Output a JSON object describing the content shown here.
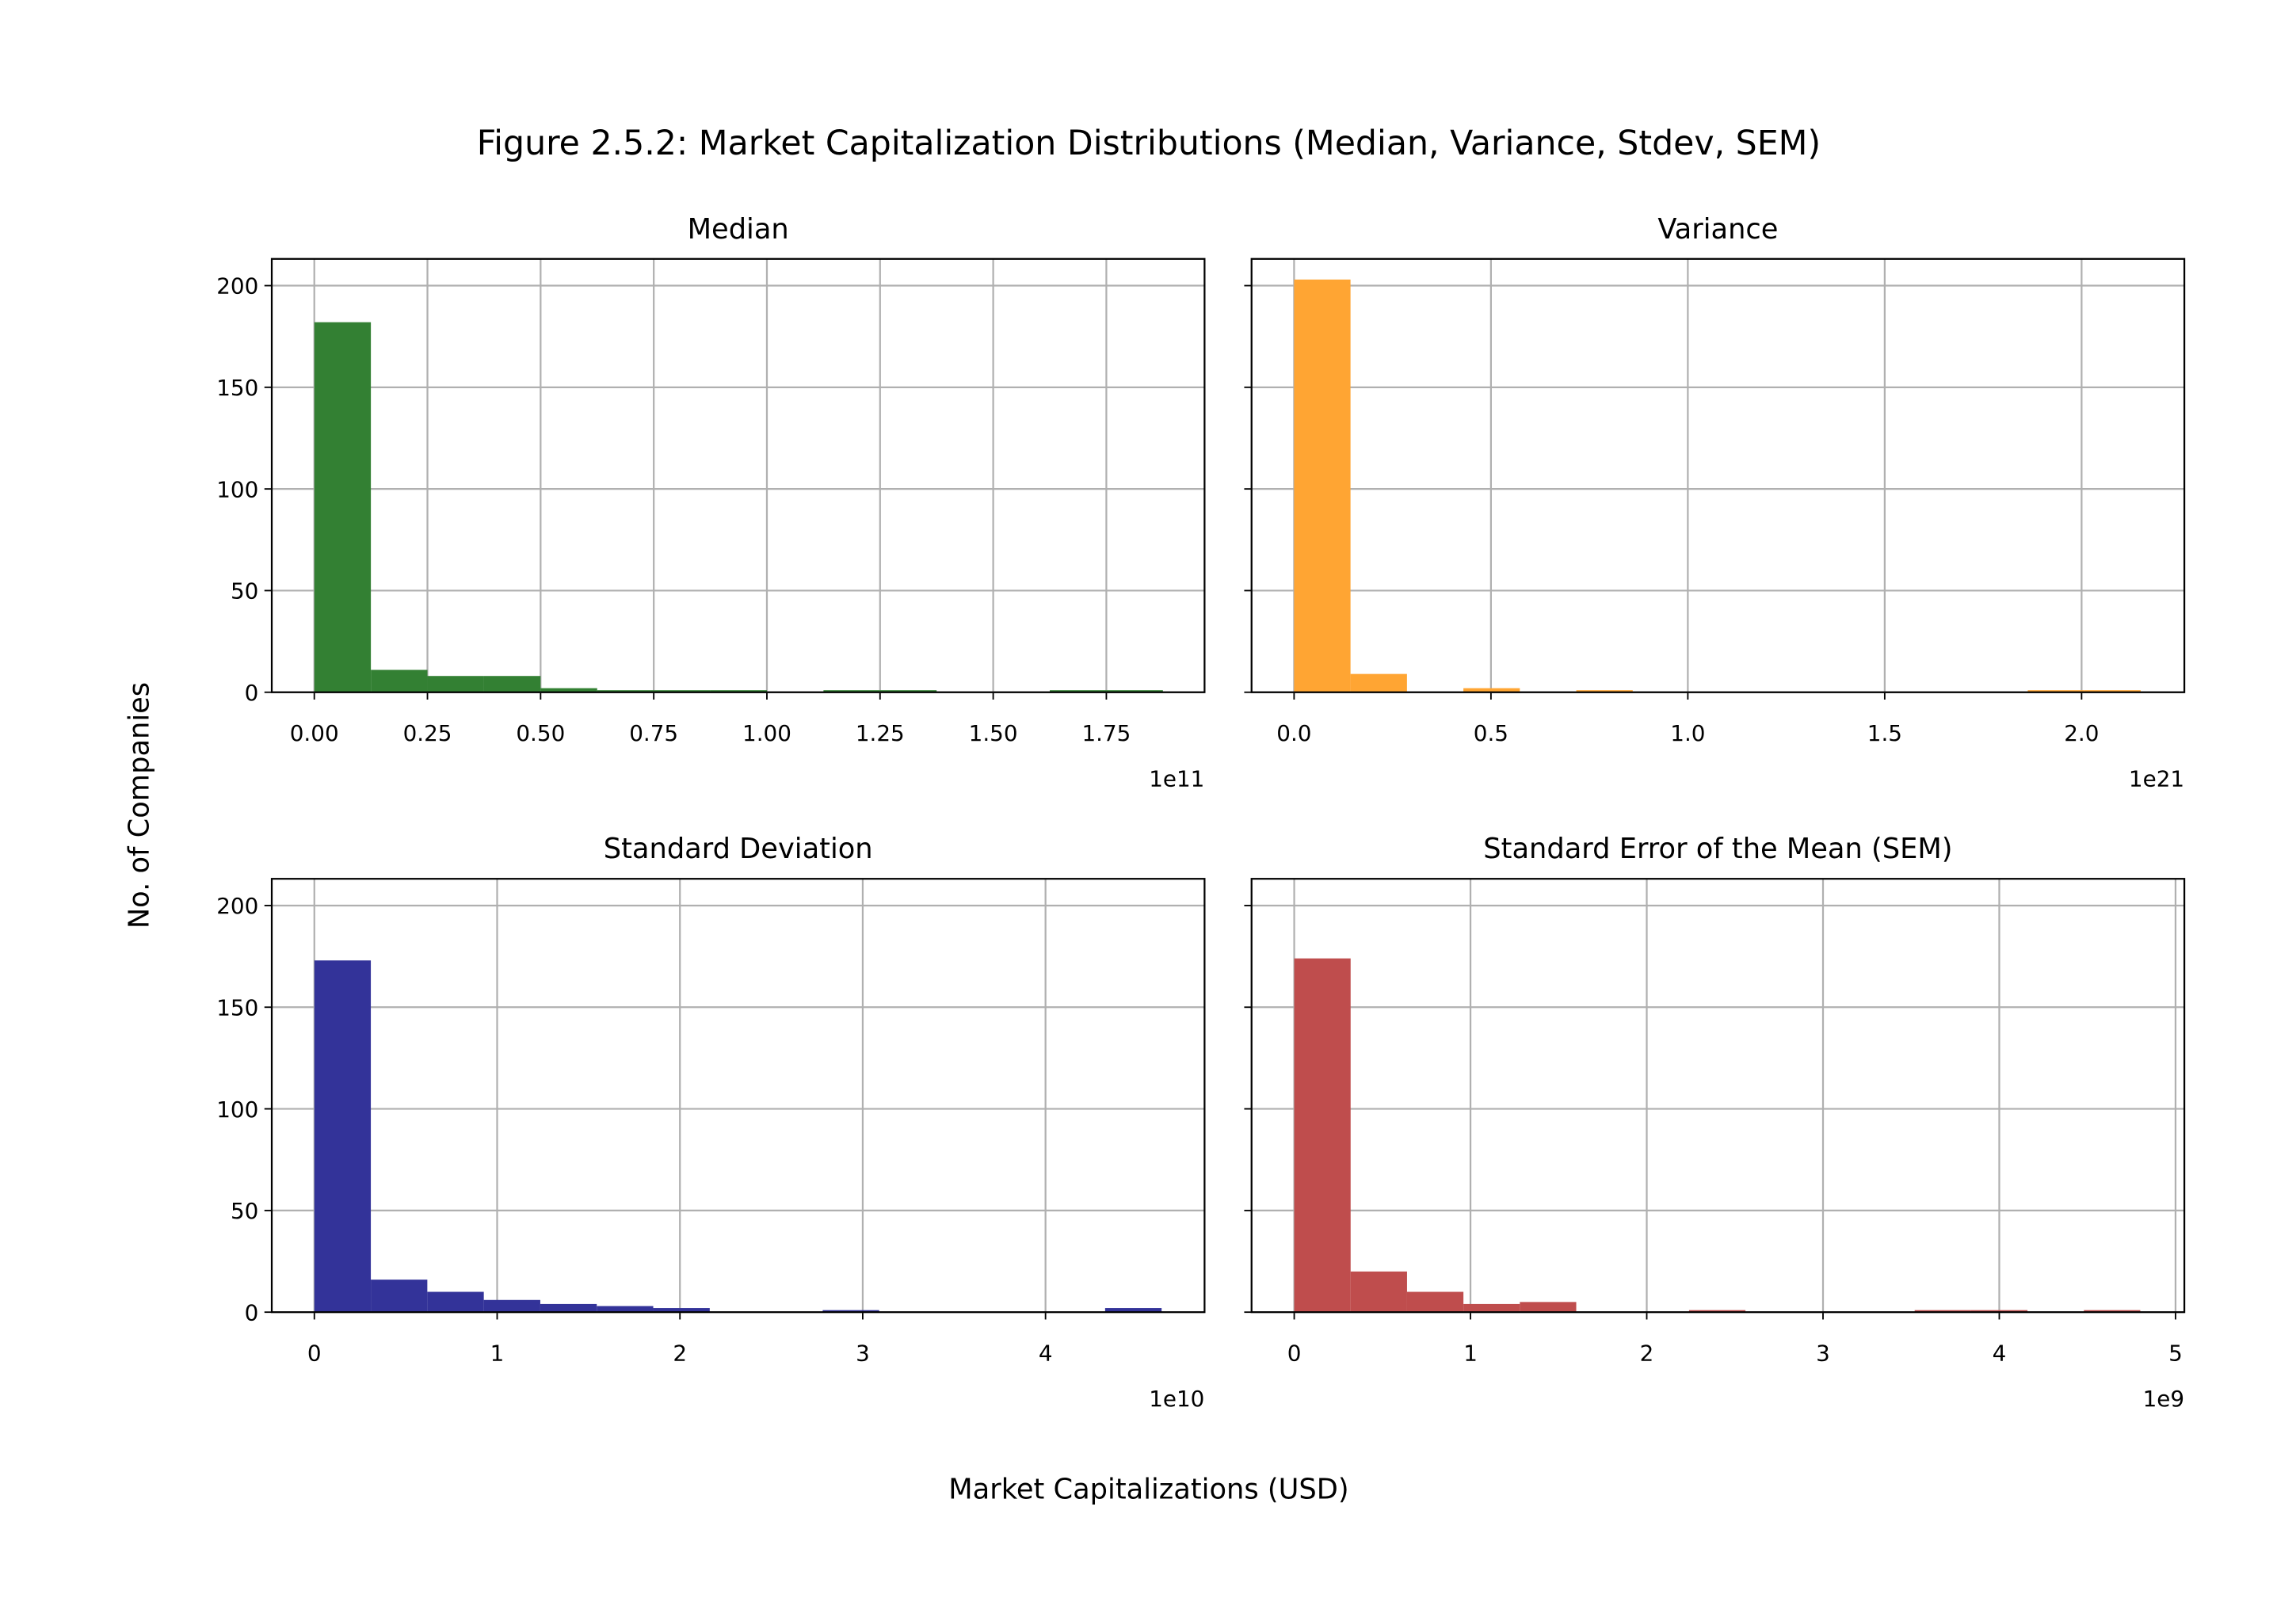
{
  "title": "Figure 2.5.2: Market Capitalization Distributions (Median, Variance, Stdev, SEM)",
  "xlabel": "Market Capitalizations (USD)",
  "ylabel": "No. of Companies",
  "chart_data": [
    {
      "type": "histogram",
      "title": "Median",
      "color": "#338033",
      "grid": true,
      "show_ytick_labels": true,
      "x_offset_label": "1e11",
      "bins": [
        0,
        0.125,
        0.25,
        0.375,
        0.5,
        0.625,
        0.75,
        0.875,
        1.0,
        1.125,
        1.25,
        1.375,
        1.5,
        1.625,
        1.75,
        1.875
      ],
      "counts": [
        182,
        11,
        8,
        8,
        2,
        1,
        1,
        1,
        0,
        1,
        1,
        0,
        0,
        1,
        1
      ],
      "xlim": [
        -0.094,
        1.967
      ],
      "ylim": [
        0,
        213.15
      ],
      "xticks": [
        {
          "value": 0,
          "label": "0.00"
        },
        {
          "value": 0.25,
          "label": "0.25"
        },
        {
          "value": 0.5,
          "label": "0.50"
        },
        {
          "value": 0.75,
          "label": "0.75"
        },
        {
          "value": 1.0,
          "label": "1.00"
        },
        {
          "value": 1.25,
          "label": "1.25"
        },
        {
          "value": 1.5,
          "label": "1.50"
        },
        {
          "value": 1.75,
          "label": "1.75"
        }
      ],
      "yticks": [
        0,
        50,
        100,
        150,
        200
      ]
    },
    {
      "type": "histogram",
      "title": "Variance",
      "color": "#ffa533",
      "grid": true,
      "show_ytick_labels": false,
      "x_offset_label": "1e21",
      "bins": [
        0,
        0.1433,
        0.2867,
        0.43,
        0.5733,
        0.7167,
        0.86,
        1.0033,
        1.1467,
        1.29,
        1.4333,
        1.5767,
        1.72,
        1.8633,
        2.0067,
        2.15
      ],
      "counts": [
        203,
        9,
        0,
        2,
        0,
        1,
        0,
        0,
        0,
        0,
        0,
        0,
        0,
        1,
        1
      ],
      "xlim": [
        -0.108,
        2.261
      ],
      "ylim": [
        0,
        213.15
      ],
      "xticks": [
        {
          "value": 0,
          "label": "0.0"
        },
        0.5,
        {
          "value": 1.0,
          "label": "1.0"
        },
        1.5,
        {
          "value": 2.0,
          "label": "2.0"
        }
      ],
      "yticks": [
        0,
        50,
        100,
        150,
        200
      ]
    },
    {
      "type": "histogram",
      "title": "Standard Deviation",
      "color": "#333399",
      "grid": true,
      "show_ytick_labels": true,
      "x_offset_label": "1e10",
      "bins": [
        0,
        0.309,
        0.618,
        0.927,
        1.236,
        1.545,
        1.854,
        2.163,
        2.472,
        2.781,
        3.09,
        3.399,
        3.708,
        4.017,
        4.326,
        4.635
      ],
      "counts": [
        173,
        16,
        10,
        6,
        4,
        3,
        2,
        0,
        0,
        1,
        0,
        0,
        0,
        0,
        2
      ],
      "xlim": [
        -0.233,
        4.87
      ],
      "ylim": [
        0,
        213.15
      ],
      "xticks": [
        0,
        1,
        2,
        3,
        4
      ],
      "yticks": [
        0,
        50,
        100,
        150,
        200
      ]
    },
    {
      "type": "histogram",
      "title": "Standard Error of the Mean (SEM)",
      "color": "#bf4d4d",
      "grid": true,
      "show_ytick_labels": false,
      "x_offset_label": "1e9",
      "bins": [
        0,
        0.32,
        0.64,
        0.96,
        1.28,
        1.6,
        1.92,
        2.24,
        2.56,
        2.88,
        3.2,
        3.52,
        3.84,
        4.16,
        4.48,
        4.8
      ],
      "counts": [
        174,
        20,
        10,
        4,
        5,
        0,
        0,
        1,
        0,
        0,
        0,
        1,
        1,
        0,
        1
      ],
      "xlim": [
        -0.242,
        5.05
      ],
      "ylim": [
        0,
        213.15
      ],
      "xticks": [
        0,
        1,
        2,
        3,
        4,
        5
      ],
      "yticks": [
        0,
        50,
        100,
        150,
        200
      ]
    }
  ]
}
